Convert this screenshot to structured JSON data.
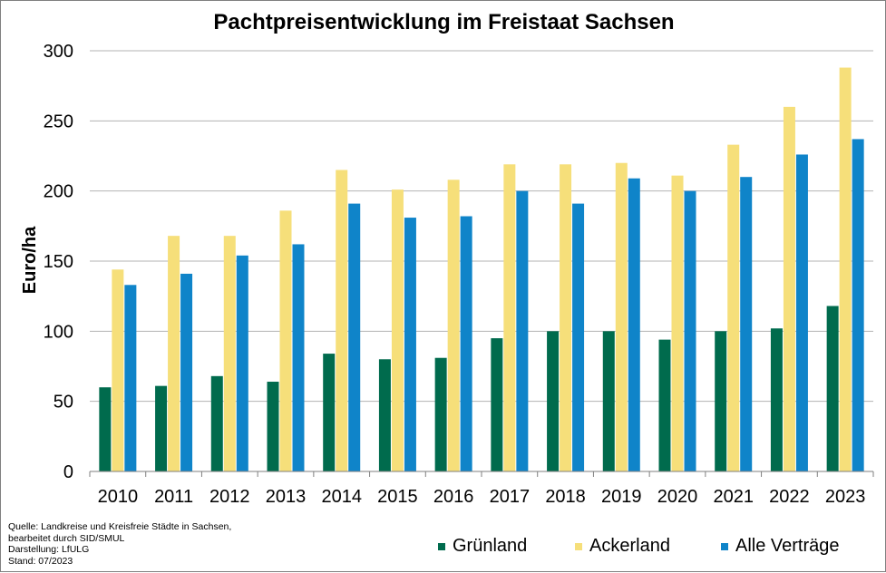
{
  "chart_data": {
    "type": "bar",
    "title": "Pachtpreisentwicklung im Freistaat Sachsen",
    "ylabel": "Euro/ha",
    "xlabel": "",
    "ylim": [
      0,
      300
    ],
    "yticks": [
      "0",
      "50",
      "100",
      "150",
      "200",
      "250",
      "300"
    ],
    "grid": true,
    "legend": "bottom",
    "categories": [
      "2010",
      "2011",
      "2012",
      "2013",
      "2014",
      "2015",
      "2016",
      "2017",
      "2018",
      "2019",
      "2020",
      "2021",
      "2022",
      "2023"
    ],
    "series": [
      {
        "name": "Grünland",
        "color": "#006b4d",
        "values": [
          60,
          61,
          68,
          64,
          84,
          80,
          81,
          95,
          100,
          100,
          94,
          100,
          102,
          118
        ]
      },
      {
        "name": "Ackerland",
        "color": "#f6df7a",
        "values": [
          144,
          168,
          168,
          186,
          215,
          201,
          208,
          219,
          219,
          220,
          211,
          233,
          260,
          288
        ]
      },
      {
        "name": "Alle Verträge",
        "color": "#0f84c9",
        "values": [
          133,
          141,
          154,
          162,
          191,
          181,
          182,
          200,
          191,
          209,
          200,
          210,
          226,
          237
        ]
      }
    ]
  },
  "source_note": [
    "Quelle:  Landkreise und Kreisfreie Städte in Sachsen,",
    "bearbeitet durch SID/SMUL",
    "Darstellung: LfULG",
    "Stand: 07/2023"
  ]
}
